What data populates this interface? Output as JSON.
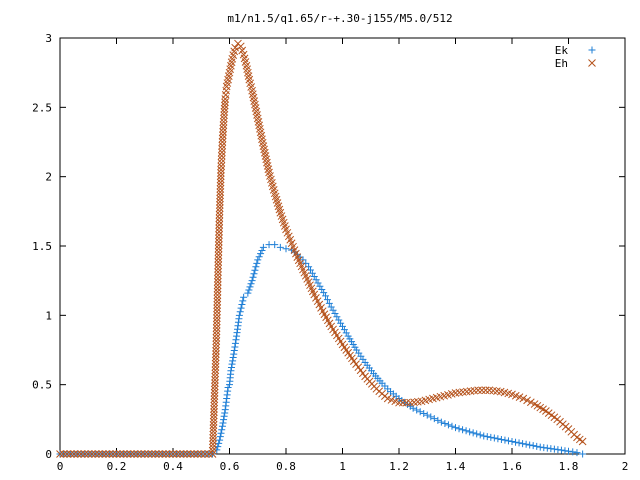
{
  "chart_data": {
    "type": "scatter",
    "title": "m1/n1.5/q1.65/r-+.30-j155/M5.0/512",
    "xlabel": "",
    "ylabel": "",
    "xlim": [
      0,
      2
    ],
    "ylim": [
      0,
      3
    ],
    "x_ticks": [
      0,
      0.2,
      0.4,
      0.6,
      0.8,
      1,
      1.2,
      1.4,
      1.6,
      1.8,
      2
    ],
    "x_tick_labels": [
      "0",
      "0.2",
      "0.4",
      "0.6",
      "0.8",
      "1",
      "1.2",
      "1.4",
      "1.6",
      "1.8",
      "2"
    ],
    "y_ticks": [
      0,
      0.5,
      1,
      1.5,
      2,
      2.5,
      3
    ],
    "y_tick_labels": [
      "0",
      "0.5",
      "1",
      "1.5",
      "2",
      "2.5",
      "3"
    ],
    "grid": false,
    "legend_position": "top-right",
    "series": [
      {
        "name": "Ek",
        "marker": "plus",
        "color": "#1f7fd6",
        "x": [
          0.0,
          0.1,
          0.2,
          0.3,
          0.4,
          0.5,
          0.54,
          0.555,
          0.565,
          0.575,
          0.585,
          0.595,
          0.6,
          0.605,
          0.615,
          0.625,
          0.635,
          0.65,
          0.665,
          0.68,
          0.7,
          0.72,
          0.74,
          0.76,
          0.78,
          0.8,
          0.82,
          0.84,
          0.86,
          0.88,
          0.9,
          0.92,
          0.94,
          0.96,
          0.98,
          1.0,
          1.02,
          1.05,
          1.08,
          1.11,
          1.14,
          1.17,
          1.2,
          1.25,
          1.3,
          1.35,
          1.4,
          1.45,
          1.5,
          1.55,
          1.6,
          1.65,
          1.7,
          1.75,
          1.8,
          1.83,
          1.85
        ],
        "y": [
          0.0,
          0.0,
          0.0,
          0.0,
          0.0,
          0.0,
          0.0,
          0.03,
          0.1,
          0.2,
          0.32,
          0.48,
          0.5,
          0.6,
          0.72,
          0.85,
          1.0,
          1.13,
          1.16,
          1.25,
          1.4,
          1.49,
          1.51,
          1.51,
          1.49,
          1.48,
          1.47,
          1.44,
          1.4,
          1.35,
          1.28,
          1.21,
          1.14,
          1.06,
          0.99,
          0.92,
          0.85,
          0.75,
          0.66,
          0.58,
          0.51,
          0.45,
          0.4,
          0.33,
          0.28,
          0.23,
          0.19,
          0.16,
          0.13,
          0.11,
          0.09,
          0.07,
          0.05,
          0.035,
          0.02,
          0.01,
          0.0
        ]
      },
      {
        "name": "Eh",
        "marker": "cross",
        "color": "#b5521b",
        "x": [
          0.0,
          0.1,
          0.2,
          0.3,
          0.4,
          0.5,
          0.54,
          0.553,
          0.56,
          0.565,
          0.57,
          0.575,
          0.58,
          0.585,
          0.59,
          0.6,
          0.61,
          0.62,
          0.63,
          0.64,
          0.65,
          0.66,
          0.67,
          0.68,
          0.7,
          0.72,
          0.74,
          0.76,
          0.78,
          0.8,
          0.82,
          0.84,
          0.86,
          0.88,
          0.9,
          0.93,
          0.96,
          1.0,
          1.04,
          1.08,
          1.12,
          1.16,
          1.2,
          1.24,
          1.28,
          1.32,
          1.36,
          1.4,
          1.44,
          1.48,
          1.52,
          1.56,
          1.6,
          1.64,
          1.68,
          1.72,
          1.76,
          1.8,
          1.83,
          1.85
        ],
        "y": [
          0.0,
          0.0,
          0.0,
          0.0,
          0.0,
          0.0,
          0.0,
          0.79,
          1.36,
          1.75,
          2.05,
          2.25,
          2.42,
          2.56,
          2.65,
          2.75,
          2.85,
          2.93,
          2.96,
          2.94,
          2.88,
          2.8,
          2.7,
          2.62,
          2.42,
          2.22,
          2.03,
          1.88,
          1.74,
          1.62,
          1.52,
          1.42,
          1.33,
          1.24,
          1.15,
          1.03,
          0.92,
          0.79,
          0.67,
          0.56,
          0.47,
          0.4,
          0.37,
          0.37,
          0.38,
          0.4,
          0.42,
          0.44,
          0.45,
          0.46,
          0.46,
          0.45,
          0.43,
          0.4,
          0.36,
          0.31,
          0.25,
          0.18,
          0.12,
          0.09
        ]
      }
    ]
  }
}
